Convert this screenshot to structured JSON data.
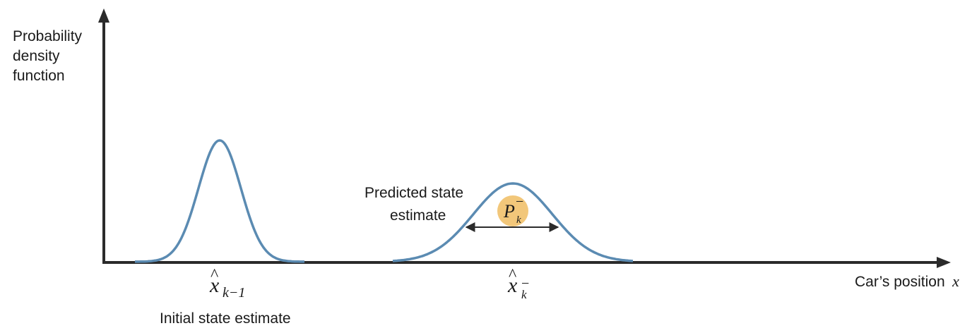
{
  "y_axis": {
    "label_lines": [
      "Probability",
      "density",
      "function"
    ]
  },
  "x_axis": {
    "label_text": "Car’s position",
    "label_var": "x"
  },
  "curves": [
    {
      "name": "initial",
      "description_lines": [
        "Initial state estimate"
      ],
      "estimate_symbol": {
        "base": "x",
        "accent": "^",
        "subscript": "k−1",
        "superscript": ""
      }
    },
    {
      "name": "predicted",
      "description_lines": [
        "Predicted state",
        "estimate"
      ],
      "estimate_symbol": {
        "base": "x",
        "accent": "^",
        "subscript": "k",
        "superscript": "−"
      },
      "covariance_symbol": {
        "base": "P",
        "subscript": "k",
        "superscript": "−"
      }
    }
  ],
  "colors": {
    "curve": "#5b8bb2",
    "axis": "#2b2b2b",
    "covariance_badge": "#f2c77a",
    "text": "#1a1a1a"
  }
}
